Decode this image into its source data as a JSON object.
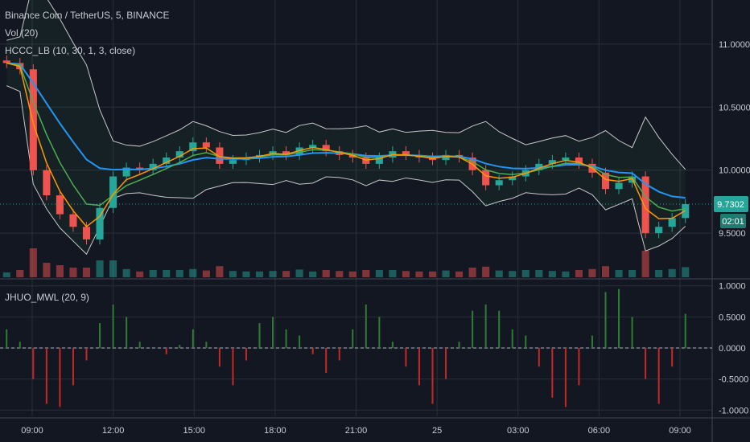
{
  "legend": {
    "symbol": "Binance Coin / TetherUS, 5, BINANCE",
    "volume": "Vol (20)",
    "indicator": "HCCC_LB (10, 30, 1, 3, close)",
    "oscillator": "JHUO_MWL (20, 9)"
  },
  "price_tag": {
    "value": "9.7302",
    "countdown": "02:01"
  },
  "colors": {
    "background": "#131722",
    "grid": "#2a2e39",
    "up": "#26a69a",
    "down": "#ef5350",
    "ema_fast": "#ff9800",
    "ema_mid": "#4caf50",
    "ema_slow": "#2196f3",
    "band": "#c8c8c8",
    "osc_pos": "#2e7d32",
    "osc_neg": "#c62828",
    "tag": "#26a69a"
  },
  "chart_data": [
    {
      "type": "candlestick",
      "title": "Binance Coin / TetherUS, 5, BINANCE",
      "x_ticks": [
        "09:00",
        "12:00",
        "15:00",
        "18:00",
        "21:00",
        "25",
        "03:00",
        "06:00",
        "09:00"
      ],
      "y_ticks": [
        "11.0000",
        "10.5000",
        "10.0000",
        "9.5000"
      ],
      "ylim": [
        9.15,
        11.35
      ],
      "last_price": 9.7302,
      "series": [
        {
          "name": "close",
          "x": [
            "07:45",
            "08:30",
            "09:00",
            "09:30",
            "10:00",
            "10:30",
            "11:00",
            "11:30",
            "12:00",
            "12:30",
            "13:00",
            "13:30",
            "14:00",
            "14:30",
            "15:00",
            "15:30",
            "16:00",
            "16:30",
            "17:00",
            "17:30",
            "18:00",
            "18:30",
            "19:00",
            "19:30",
            "20:00",
            "20:30",
            "21:00",
            "21:30",
            "22:00",
            "22:30",
            "23:00",
            "23:30",
            "00:00",
            "00:30",
            "01:00",
            "01:30",
            "02:00",
            "02:30",
            "03:00",
            "03:30",
            "04:00",
            "04:30",
            "05:00",
            "05:30",
            "06:00",
            "06:30",
            "07:00",
            "07:30",
            "08:00",
            "08:30",
            "09:00",
            "09:30"
          ],
          "values": [
            10.85,
            10.8,
            10.0,
            9.8,
            9.65,
            9.55,
            9.45,
            9.7,
            9.95,
            10.02,
            10.0,
            10.05,
            10.1,
            10.15,
            10.22,
            10.18,
            10.05,
            10.08,
            10.1,
            10.12,
            10.15,
            10.12,
            10.18,
            10.2,
            10.15,
            10.12,
            10.1,
            10.05,
            10.1,
            10.15,
            10.12,
            10.1,
            10.08,
            10.12,
            10.1,
            10.0,
            9.88,
            9.92,
            9.95,
            10.0,
            10.05,
            10.08,
            10.1,
            10.05,
            9.98,
            9.85,
            9.9,
            9.95,
            9.5,
            9.55,
            9.62,
            9.73
          ]
        }
      ],
      "volume": {
        "name": "Vol (20)",
        "note": "volume histogram at bottom of price pane"
      },
      "indicators": [
        "HCCC_LB (10, 30, 1, 3, close)"
      ]
    },
    {
      "type": "bar",
      "title": "JHUO_MWL (20, 9)",
      "y_ticks": [
        "1.0000",
        "0.5000",
        "0.0000",
        "-0.5000",
        "-1.0000"
      ],
      "ylim": [
        -1.1,
        1.1
      ],
      "x": [
        "07:45",
        "08:30",
        "09:00",
        "09:30",
        "10:00",
        "10:30",
        "11:00",
        "11:30",
        "12:00",
        "12:30",
        "13:00",
        "13:30",
        "14:00",
        "14:30",
        "15:00",
        "15:30",
        "16:00",
        "16:30",
        "17:00",
        "17:30",
        "18:00",
        "18:30",
        "19:00",
        "19:30",
        "20:00",
        "20:30",
        "21:00",
        "21:30",
        "22:00",
        "22:30",
        "23:00",
        "23:30",
        "00:00",
        "00:30",
        "01:00",
        "01:30",
        "02:00",
        "02:30",
        "03:00",
        "03:30",
        "04:00",
        "04:30",
        "05:00",
        "05:30",
        "06:00",
        "06:30",
        "07:00",
        "07:30",
        "08:00",
        "08:30",
        "09:00",
        "09:30"
      ],
      "values": [
        0.3,
        0.1,
        -0.5,
        -0.9,
        -0.95,
        -0.6,
        -0.2,
        0.4,
        0.7,
        0.5,
        0.1,
        0.0,
        -0.1,
        0.05,
        0.3,
        0.1,
        -0.3,
        -0.6,
        -0.2,
        0.4,
        0.5,
        0.3,
        0.2,
        -0.1,
        -0.4,
        -0.2,
        0.3,
        0.7,
        0.5,
        0.1,
        -0.3,
        -0.6,
        -0.9,
        -0.5,
        0.1,
        0.6,
        0.7,
        0.6,
        0.3,
        0.2,
        -0.3,
        -0.8,
        -0.95,
        -0.6,
        0.2,
        0.9,
        0.95,
        0.5,
        -0.5,
        -0.9,
        -0.3,
        0.55
      ]
    }
  ]
}
